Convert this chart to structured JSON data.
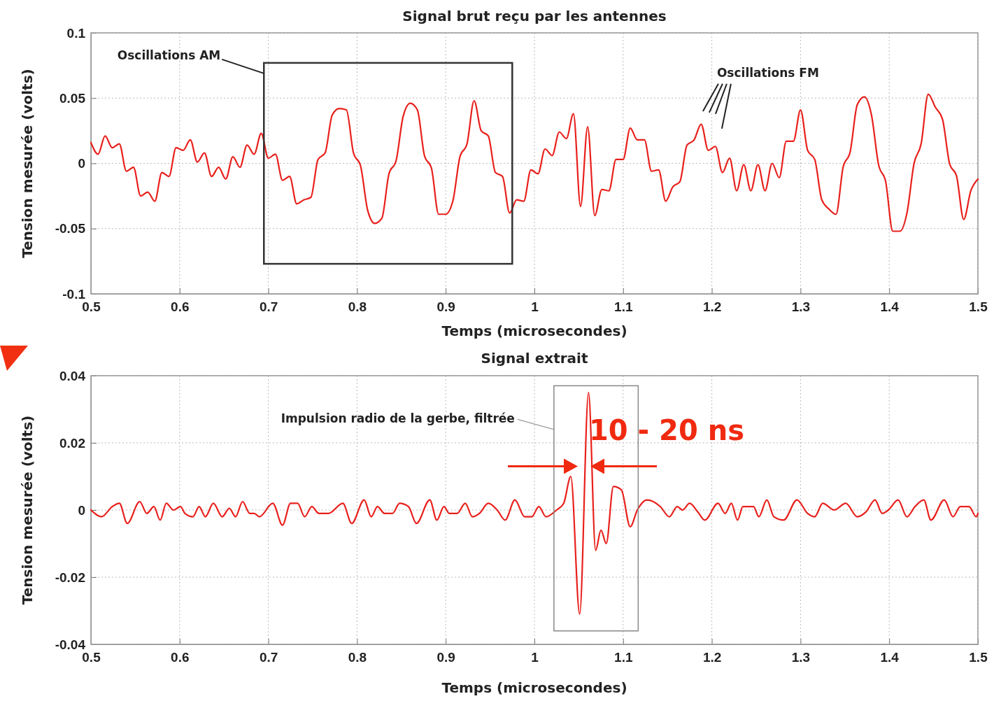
{
  "chart_data": [
    {
      "type": "line",
      "title": "Signal brut reçu par les antennes",
      "xlabel": "Temps (microsecondes)",
      "ylabel": "Tension mesurée (volts)",
      "xlim": [
        0.5,
        1.5
      ],
      "xticks": [
        0.5,
        0.6,
        0.7,
        0.8,
        0.9,
        1,
        1.1,
        1.2,
        1.3,
        1.4,
        1.5
      ],
      "ylim": [
        -0.1,
        0.1
      ],
      "yticks": [
        -0.1,
        -0.05,
        0,
        0.05,
        0.1
      ],
      "grid": true,
      "annotations": [
        "Oscillations AM",
        "Oscillations FM"
      ],
      "series": [
        {
          "color": "#e8201c",
          "x": [
            0.5,
            0.508,
            0.516,
            0.524,
            0.532,
            0.54,
            0.548,
            0.556,
            0.564,
            0.572,
            0.58,
            0.588,
            0.596,
            0.604,
            0.612,
            0.62,
            0.628,
            0.636,
            0.644,
            0.652,
            0.66,
            0.668,
            0.676,
            0.684,
            0.692,
            0.7,
            0.708,
            0.716,
            0.724,
            0.732,
            0.74,
            0.748,
            0.756,
            0.764,
            0.772,
            0.78,
            0.788,
            0.796,
            0.804,
            0.812,
            0.82,
            0.828,
            0.836,
            0.844,
            0.852,
            0.86,
            0.868,
            0.876,
            0.884,
            0.892,
            0.9,
            0.908,
            0.916,
            0.924,
            0.932,
            0.94,
            0.948,
            0.956,
            0.964,
            0.972,
            0.98,
            0.988,
            0.996,
            1.004,
            1.012,
            1.02,
            1.028,
            1.036,
            1.044,
            1.052,
            1.06,
            1.068,
            1.076,
            1.084,
            1.092,
            1.1,
            1.108,
            1.116,
            1.124,
            1.132,
            1.14,
            1.148,
            1.156,
            1.164,
            1.172,
            1.18,
            1.188,
            1.196,
            1.204,
            1.212,
            1.22,
            1.228,
            1.236,
            1.244,
            1.252,
            1.26,
            1.268,
            1.276,
            1.284,
            1.292,
            1.3,
            1.308,
            1.316,
            1.324,
            1.332,
            1.34,
            1.348,
            1.356,
            1.364,
            1.372,
            1.38,
            1.388,
            1.396,
            1.404,
            1.412,
            1.42,
            1.428,
            1.436,
            1.444,
            1.452,
            1.46,
            1.468,
            1.476,
            1.484,
            1.492,
            1.5
          ],
          "values": [
            0.016,
            0.007,
            0.021,
            0.012,
            0.015,
            -0.006,
            -0.003,
            -0.025,
            -0.022,
            -0.029,
            -0.007,
            -0.01,
            0.012,
            0.01,
            0.018,
            0.001,
            0.008,
            -0.01,
            -0.003,
            -0.012,
            0.005,
            -0.003,
            0.014,
            0.007,
            0.023,
            0.004,
            0.007,
            -0.013,
            -0.01,
            -0.031,
            -0.028,
            -0.026,
            0.003,
            0.008,
            0.037,
            0.042,
            0.041,
            0.008,
            -0.002,
            -0.036,
            -0.046,
            -0.042,
            -0.008,
            0.002,
            0.036,
            0.046,
            0.041,
            0.006,
            -0.004,
            -0.039,
            -0.039,
            -0.029,
            0.005,
            0.015,
            0.048,
            0.025,
            0.021,
            -0.007,
            -0.01,
            -0.038,
            -0.028,
            -0.029,
            -0.005,
            -0.008,
            0.011,
            0.006,
            0.024,
            0.019,
            0.038,
            -0.033,
            0.028,
            -0.04,
            -0.02,
            -0.021,
            0.003,
            0.003,
            0.027,
            0.018,
            0.018,
            -0.006,
            -0.005,
            -0.029,
            -0.018,
            -0.014,
            0.014,
            0.018,
            0.03,
            0.01,
            0.013,
            -0.007,
            0.004,
            -0.021,
            -0.001,
            -0.021,
            -0.001,
            -0.021,
            0.0,
            -0.011,
            0.017,
            0.017,
            0.041,
            0.01,
            0.003,
            -0.028,
            -0.035,
            -0.039,
            -0.003,
            0.009,
            0.045,
            0.051,
            0.037,
            -0.001,
            -0.014,
            -0.052,
            -0.052,
            -0.038,
            0.0,
            0.015,
            0.053,
            0.043,
            0.034,
            0.0,
            -0.01,
            -0.043,
            -0.021,
            -0.012
          ]
        }
      ]
    },
    {
      "type": "line",
      "title": "Signal extrait",
      "xlabel": "Temps (microsecondes)",
      "ylabel": "Tension mesurée (volts)",
      "xlim": [
        0.5,
        1.5
      ],
      "xticks": [
        0.5,
        0.6,
        0.7,
        0.8,
        0.9,
        1,
        1.1,
        1.2,
        1.3,
        1.4,
        1.5
      ],
      "ylim": [
        -0.04,
        0.04
      ],
      "yticks": [
        -0.04,
        -0.02,
        0,
        0.02,
        0.04
      ],
      "grid": true,
      "annotations": [
        "Impulsion radio de la gerbe, filtrée",
        "10 - 20 ns"
      ],
      "series": [
        {
          "color": "#e8201c",
          "x": [
            0.5,
            0.512,
            0.524,
            0.532,
            0.541,
            0.555,
            0.563,
            0.571,
            0.578,
            0.585,
            0.593,
            0.601,
            0.606,
            0.615,
            0.622,
            0.629,
            0.638,
            0.648,
            0.656,
            0.663,
            0.671,
            0.679,
            0.684,
            0.69,
            0.705,
            0.716,
            0.725,
            0.733,
            0.741,
            0.749,
            0.757,
            0.768,
            0.784,
            0.794,
            0.808,
            0.816,
            0.823,
            0.831,
            0.84,
            0.848,
            0.858,
            0.867,
            0.882,
            0.89,
            0.898,
            0.904,
            0.913,
            0.922,
            0.93,
            0.938,
            0.948,
            0.958,
            0.967,
            0.978,
            0.989,
            0.997,
            1.005,
            1.013,
            1.025,
            1.033,
            1.041,
            1.051,
            1.061,
            1.069,
            1.075,
            1.081,
            1.089,
            1.098,
            1.108,
            1.116,
            1.127,
            1.142,
            1.152,
            1.161,
            1.167,
            1.175,
            1.184,
            1.192,
            1.207,
            1.215,
            1.222,
            1.229,
            1.235,
            1.247,
            1.253,
            1.262,
            1.27,
            1.281,
            1.296,
            1.308,
            1.316,
            1.325,
            1.338,
            1.351,
            1.364,
            1.374,
            1.384,
            1.392,
            1.399,
            1.41,
            1.42,
            1.429,
            1.439,
            1.447,
            1.462,
            1.472,
            1.48,
            1.49,
            1.498,
            1.5
          ],
          "values": [
            0,
            -0.002,
            0.001,
            0.002,
            -0.004,
            0.0025,
            -0.001,
            0.001,
            -0.003,
            0.002,
            0,
            0.001,
            -0.001,
            -0.002,
            0.001,
            -0.002,
            0.002,
            -0.002,
            0.0005,
            -0.002,
            0.0025,
            -0.001,
            -0.001,
            -0.002,
            0.002,
            -0.0045,
            0.002,
            0.002,
            -0.002,
            0.001,
            -0.001,
            -0.001,
            0.002,
            -0.004,
            0.003,
            -0.002,
            0.001,
            -0.001,
            -0.001,
            0.002,
            0.001,
            -0.004,
            0.003,
            -0.003,
            0.001,
            -0.001,
            -0.001,
            0.002,
            -0.002,
            -0.001,
            0.002,
            0,
            -0.003,
            0.003,
            -0.002,
            -0.002,
            0.001,
            -0.002,
            0,
            0.002,
            0.01,
            -0.031,
            0.035,
            -0.012,
            -0.006,
            -0.01,
            0.007,
            0.006,
            -0.005,
            0,
            0.003,
            0.001,
            -0.002,
            0.001,
            0,
            0.002,
            -0.0005,
            -0.003,
            0.002,
            -0.001,
            0.002,
            -0.003,
            0.001,
            0.001,
            -0.002,
            0.003,
            -0.002,
            -0.003,
            0.003,
            -0.001,
            -0.002,
            0.002,
            0,
            0.002,
            -0.002,
            -0.0005,
            0.003,
            -0.001,
            0,
            0.003,
            -0.002,
            0.001,
            0.003,
            -0.003,
            0.003,
            -0.002,
            0.001,
            0.001,
            -0.002,
            -0.001
          ]
        }
      ]
    }
  ]
}
